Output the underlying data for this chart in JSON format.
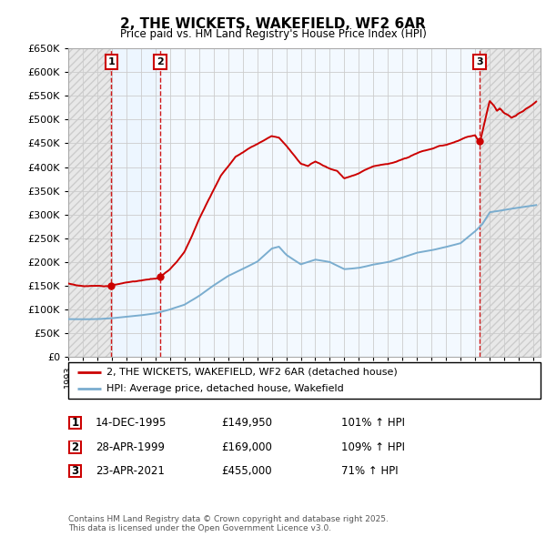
{
  "title": "2, THE WICKETS, WAKEFIELD, WF2 6AR",
  "subtitle": "Price paid vs. HM Land Registry's House Price Index (HPI)",
  "sale_dates": [
    1995.96,
    1999.33,
    2021.31
  ],
  "sale_prices": [
    149950,
    169000,
    455000
  ],
  "sale_labels": [
    "1",
    "2",
    "3"
  ],
  "hpi_pct": [
    "101% ↑ HPI",
    "109% ↑ HPI",
    "71% ↑ HPI"
  ],
  "sale_date_labels": [
    "14-DEC-1995",
    "28-APR-1999",
    "23-APR-2021"
  ],
  "sale_price_labels": [
    "£149,950",
    "£169,000",
    "£455,000"
  ],
  "legend_property": "2, THE WICKETS, WAKEFIELD, WF2 6AR (detached house)",
  "legend_hpi": "HPI: Average price, detached house, Wakefield",
  "footer": "Contains HM Land Registry data © Crown copyright and database right 2025.\nThis data is licensed under the Open Government Licence v3.0.",
  "ylim": [
    0,
    650000
  ],
  "yticks": [
    0,
    50000,
    100000,
    150000,
    200000,
    250000,
    300000,
    350000,
    400000,
    450000,
    500000,
    550000,
    600000,
    650000
  ],
  "xmin": 1993.0,
  "xmax": 2025.5,
  "red_color": "#cc0000",
  "blue_color": "#7aadcf",
  "bg_color": "#ffffff"
}
